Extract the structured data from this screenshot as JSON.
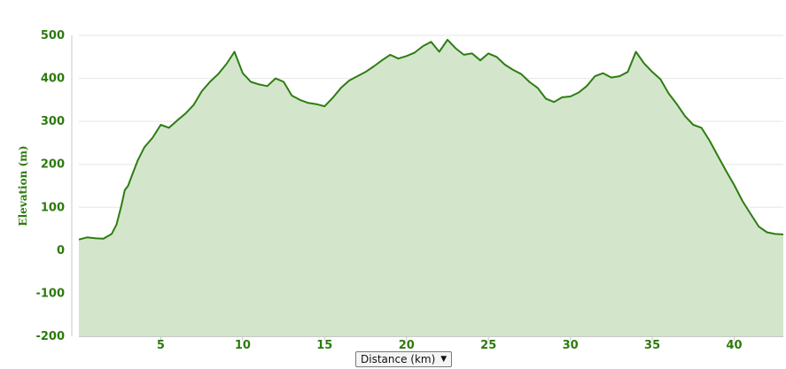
{
  "chart_data": {
    "type": "area",
    "title": "",
    "xlabel": "Distance (km)",
    "ylabel": "Elevation (m)",
    "xlim": [
      0,
      43
    ],
    "ylim": [
      -200,
      500
    ],
    "x_ticks": [
      5,
      10,
      15,
      20,
      25,
      30,
      35,
      40
    ],
    "y_ticks": [
      -200,
      -100,
      0,
      100,
      200,
      300,
      400,
      500
    ],
    "grid": true,
    "series": [
      {
        "x": [
          0,
          0.5,
          1,
          1.5,
          2,
          2.3,
          2.6,
          2.8,
          3.0,
          3.3,
          3.6,
          4.0,
          4.5,
          5.0,
          5.5,
          6.0,
          6.5,
          7.0,
          7.5,
          8.0,
          8.5,
          9.0,
          9.5,
          10.0,
          10.5,
          11.0,
          11.5,
          12.0,
          12.5,
          13.0,
          13.5,
          14.0,
          14.5,
          15.0,
          15.5,
          16.0,
          16.5,
          17.0,
          17.5,
          18.0,
          18.5,
          19.0,
          19.5,
          20.0,
          20.5,
          21.0,
          21.5,
          22.0,
          22.5,
          23.0,
          23.5,
          24.0,
          24.5,
          25.0,
          25.5,
          26.0,
          26.5,
          27.0,
          27.5,
          28.0,
          28.5,
          29.0,
          29.5,
          30.0,
          30.5,
          31.0,
          31.5,
          32.0,
          32.5,
          33.0,
          33.5,
          34.0,
          34.5,
          35.0,
          35.5,
          36.0,
          36.5,
          37.0,
          37.5,
          38.0,
          38.5,
          39.0,
          39.5,
          40.0,
          40.5,
          41.0,
          41.5,
          42.0,
          42.5,
          43.0
        ],
        "y": [
          25,
          30,
          28,
          27,
          38,
          60,
          105,
          140,
          150,
          180,
          210,
          240,
          262,
          292,
          285,
          302,
          318,
          338,
          370,
          392,
          410,
          433,
          462,
          412,
          392,
          386,
          382,
          400,
          392,
          360,
          350,
          343,
          340,
          335,
          355,
          378,
          395,
          405,
          415,
          428,
          442,
          455,
          446,
          452,
          460,
          475,
          485,
          462,
          490,
          470,
          455,
          458,
          442,
          458,
          450,
          432,
          420,
          410,
          392,
          378,
          353,
          345,
          356,
          358,
          367,
          382,
          405,
          412,
          402,
          405,
          415,
          462,
          435,
          415,
          398,
          365,
          340,
          312,
          292,
          285,
          255,
          220,
          185,
          152,
          115,
          85,
          55,
          42,
          38,
          37
        ]
      }
    ],
    "colors": {
      "line": "#2e7d12",
      "fill": "#d3e6cc",
      "grid": "#e6e6e6",
      "axis": "#c8c8c8",
      "label": "#2d7a0c"
    }
  },
  "controls": {
    "distance_unit_select": "Distance (km)",
    "distance_unit_arrow": "▼"
  }
}
